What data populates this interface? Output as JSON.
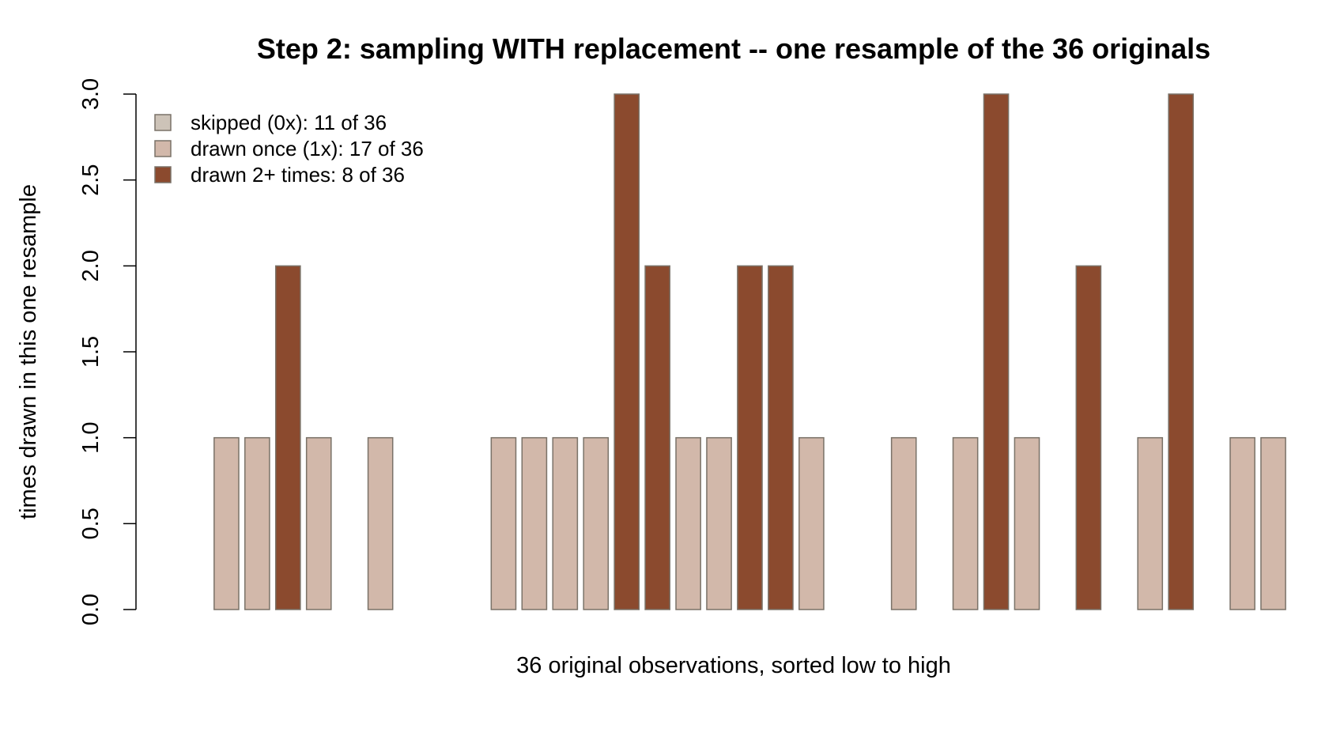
{
  "chart_data": {
    "type": "bar",
    "title": "Step 2: sampling WITH replacement -- one resample of the 36 originals",
    "xlabel": "36 original observations, sorted low to high",
    "ylabel": "times drawn in this one resample",
    "ylim": [
      0,
      3
    ],
    "yticks": [
      "0.0",
      "0.5",
      "1.0",
      "1.5",
      "2.0",
      "2.5",
      "3.0"
    ],
    "grid": false,
    "legend_position": "top-left",
    "values": [
      0,
      1,
      1,
      2,
      1,
      0,
      1,
      0,
      0,
      0,
      1,
      1,
      1,
      1,
      3,
      2,
      1,
      1,
      2,
      2,
      1,
      0,
      0,
      1,
      0,
      1,
      3,
      1,
      0,
      2,
      0,
      1,
      3,
      0,
      1,
      1
    ],
    "colors": {
      "skipped": "#cdc3b8",
      "once": "#d2b8aa",
      "multiple": "#8b4a2e",
      "bar_border": "#7a7268"
    },
    "legend": [
      {
        "label": "skipped (0x): 11 of 36",
        "color": "#cdc3b8"
      },
      {
        "label": "drawn once (1x): 17 of 36",
        "color": "#d2b8aa"
      },
      {
        "label": "drawn 2+ times: 8 of 36",
        "color": "#8b4a2e"
      }
    ]
  }
}
